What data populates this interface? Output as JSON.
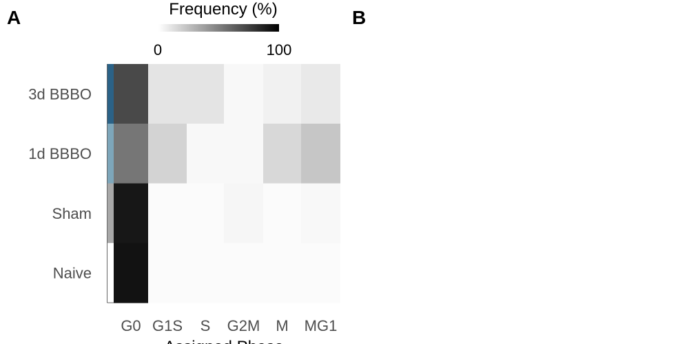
{
  "panels": {
    "a_label": "A",
    "b_label": "B"
  },
  "chart_data": {
    "type": "heatmap",
    "title": "",
    "xlabel": "Assigned Phase",
    "ylabel": "",
    "x_categories": [
      "G0",
      "G1S",
      "S",
      "G2M",
      "M",
      "MG1"
    ],
    "y_categories": [
      "3d BBBO",
      "1d BBBO",
      "Sham",
      "Naive"
    ],
    "values": [
      [
        72,
        10,
        10,
        2,
        5,
        8
      ],
      [
        54,
        17,
        2,
        2,
        15,
        22
      ],
      [
        92,
        1,
        1,
        3,
        1,
        2
      ],
      [
        94,
        1,
        1,
        1,
        1,
        1
      ]
    ],
    "row_group_colors": [
      "#2b6287",
      "#7da6ba",
      "#a8a8a8",
      "#ffffff"
    ],
    "legend": {
      "title": "Frequency (%)",
      "min": 0,
      "max": 100,
      "min_label": "0",
      "max_label": "100",
      "low_color": "#ffffff",
      "high_color": "#000000",
      "placement": "top"
    }
  }
}
